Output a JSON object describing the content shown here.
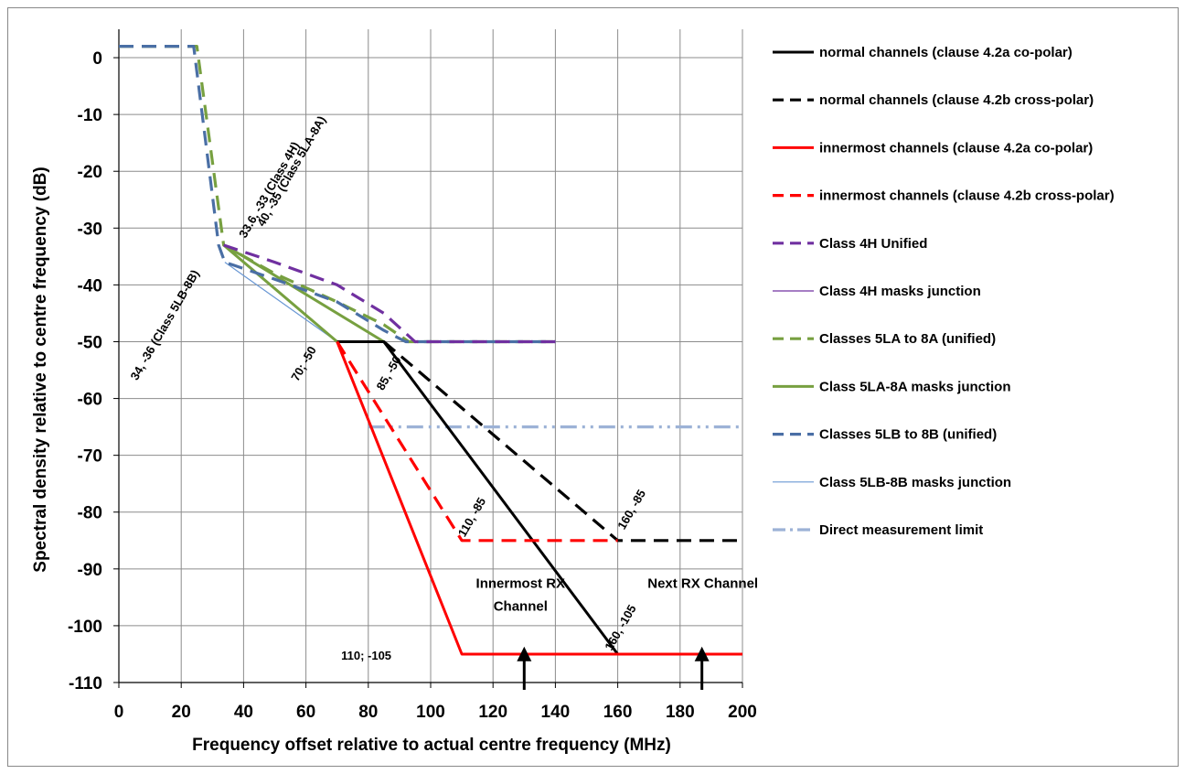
{
  "chart_data": {
    "type": "line",
    "title": "",
    "xlabel": "Frequency offset relative to actual centre frequency (MHz)",
    "ylabel": "Spectral density relative to centre frequency (dB)",
    "xlim": [
      0,
      200
    ],
    "ylim": [
      -110,
      5
    ],
    "x_ticks": [
      "0",
      "20",
      "40",
      "60",
      "80",
      "100",
      "120",
      "140",
      "160",
      "180",
      "200"
    ],
    "y_ticks": [
      "0",
      "-10",
      "-20",
      "-30",
      "-40",
      "-50",
      "-60",
      "-70",
      "-80",
      "-90",
      "-100",
      "-110"
    ],
    "grid": true,
    "legend_position": "right",
    "series": [
      {
        "name": "normal channels (clause 4.2a co-polar)",
        "color": "#000000",
        "style": "solid",
        "points": [
          [
            70,
            -50
          ],
          [
            85,
            -50
          ],
          [
            160,
            -105
          ],
          [
            200,
            -105
          ]
        ]
      },
      {
        "name": "normal channels (clause 4.2b cross-polar)",
        "color": "#000000",
        "style": "dash",
        "points": [
          [
            85,
            -50
          ],
          [
            160,
            -85
          ],
          [
            200,
            -85
          ]
        ]
      },
      {
        "name": "innermost channels (clause 4.2a co-polar)",
        "color": "#ff0000",
        "style": "solid",
        "points": [
          [
            70,
            -50
          ],
          [
            110,
            -105
          ],
          [
            200,
            -105
          ]
        ]
      },
      {
        "name": "innermost channels (clause 4.2b cross-polar)",
        "color": "#ff0000",
        "style": "dash",
        "points": [
          [
            70,
            -50
          ],
          [
            110,
            -85
          ],
          [
            160,
            -85
          ]
        ]
      },
      {
        "name": "Class 4H Unified",
        "color": "#7030a0",
        "style": "dash",
        "points": [
          [
            33.6,
            -33
          ],
          [
            50,
            -36
          ],
          [
            70,
            -40
          ],
          [
            85,
            -45
          ],
          [
            95,
            -50
          ],
          [
            140,
            -50
          ]
        ]
      },
      {
        "name": "Class 4H masks junction",
        "color": "#7030a0",
        "style": "thin",
        "points": [
          [
            33.6,
            -33
          ],
          [
            70,
            -50
          ],
          [
            85,
            -50
          ]
        ]
      },
      {
        "name": "Classes 5LA to 8A (unified)",
        "color": "#77a040",
        "style": "dash",
        "points": [
          [
            0,
            2
          ],
          [
            25,
            2
          ],
          [
            33.6,
            -33
          ],
          [
            50,
            -38
          ],
          [
            70,
            -43
          ],
          [
            85,
            -47
          ],
          [
            93,
            -50
          ],
          [
            140,
            -50
          ]
        ]
      },
      {
        "name": "Class 5LA-8A masks junction",
        "color": "#77a040",
        "style": "solid",
        "points": [
          [
            33.6,
            -33
          ],
          [
            70,
            -50
          ],
          [
            85,
            -50
          ],
          [
            40,
            -35
          ],
          [
            33.6,
            -33
          ]
        ]
      },
      {
        "name": "Classes 5LB to 8B (unified)",
        "color": "#4a6fa5",
        "style": "dash",
        "points": [
          [
            0,
            2
          ],
          [
            24,
            2
          ],
          [
            32,
            -33
          ],
          [
            34,
            -36
          ],
          [
            50,
            -39
          ],
          [
            70,
            -43
          ],
          [
            85,
            -48
          ],
          [
            92,
            -50
          ],
          [
            140,
            -50
          ]
        ]
      },
      {
        "name": "Class 5LB-8B masks junction",
        "color": "#6a98d4",
        "style": "thin",
        "points": [
          [
            34,
            -36
          ],
          [
            70,
            -50
          ],
          [
            85,
            -50
          ]
        ]
      },
      {
        "name": "Direct measurement limit",
        "color": "#9cb2d6",
        "style": "dashdot",
        "points": [
          [
            80,
            -65
          ],
          [
            200,
            -65
          ]
        ]
      }
    ],
    "annotations": [
      {
        "text": "33.6, -33 (Class 4H)",
        "x": 33.6,
        "y": -33
      },
      {
        "text": "40, -35 (Class 5LA-8A)",
        "x": 40,
        "y": -35
      },
      {
        "text": "34, -36 (Class 5LB-8B)",
        "x": 34,
        "y": -36
      },
      {
        "text": "70; -50",
        "x": 70,
        "y": -50
      },
      {
        "text": "85, -50",
        "x": 85,
        "y": -50
      },
      {
        "text": "110, -85",
        "x": 110,
        "y": -85
      },
      {
        "text": "160, -85",
        "x": 160,
        "y": -85
      },
      {
        "text": "160, -105",
        "x": 160,
        "y": -105
      },
      {
        "text": "110; -105",
        "x": 110,
        "y": -105
      },
      {
        "text": "Innermost RX",
        "x": 130,
        "y": -94
      },
      {
        "text": "Channel",
        "x": 130,
        "y": -98
      },
      {
        "text": "Next RX Channel",
        "x": 187,
        "y": -94
      }
    ],
    "arrows": [
      {
        "x": 130,
        "y_from": -110,
        "y_to": -104
      },
      {
        "x": 187,
        "y_from": -110,
        "y_to": -104
      }
    ]
  }
}
